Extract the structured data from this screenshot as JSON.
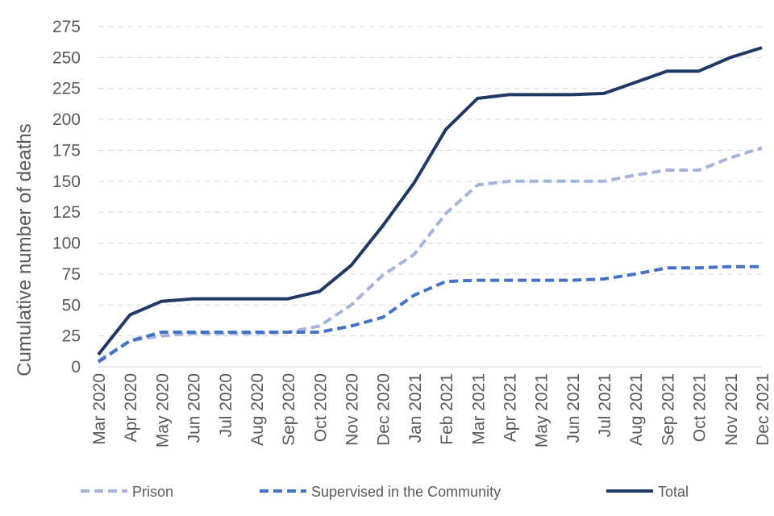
{
  "chart_data": {
    "type": "line",
    "title": "",
    "xlabel": "",
    "ylabel": "Cumulative number of deaths",
    "ylim": [
      0,
      275
    ],
    "yticks": [
      0,
      25,
      50,
      75,
      100,
      125,
      150,
      175,
      200,
      225,
      250,
      275
    ],
    "grid": true,
    "legend_position": "bottom",
    "categories": [
      "Mar 2020",
      "Apr 2020",
      "May 2020",
      "Jun 2020",
      "Jul 2020",
      "Aug 2020",
      "Sep 2020",
      "Oct 2020",
      "Nov 2020",
      "Dec 2020",
      "Jan 2021",
      "Feb 2021",
      "Mar 2021",
      "Apr 2021",
      "May 2021",
      "Jun 2021",
      "Jul 2021",
      "Aug 2021",
      "Sep 2021",
      "Oct 2021",
      "Nov 2021",
      "Dec 2021"
    ],
    "series": [
      {
        "name": "Prison",
        "color": "#a5b4dc",
        "dash": true,
        "values": [
          5,
          21,
          25,
          27,
          27,
          27,
          28,
          33,
          50,
          74,
          91,
          124,
          147,
          150,
          150,
          150,
          150,
          155,
          159,
          159,
          169,
          177
        ]
      },
      {
        "name": "Supervised in the Community",
        "color": "#4472c4",
        "dash": true,
        "values": [
          4,
          21,
          28,
          28,
          28,
          28,
          28,
          28,
          33,
          40,
          58,
          69,
          70,
          70,
          70,
          70,
          71,
          75,
          80,
          80,
          81,
          81
        ]
      },
      {
        "name": "Total",
        "color": "#203864",
        "dash": false,
        "values": [
          10,
          42,
          53,
          55,
          55,
          55,
          55,
          61,
          82,
          114,
          149,
          192,
          217,
          220,
          220,
          220,
          221,
          230,
          239,
          239,
          250,
          258
        ]
      }
    ]
  }
}
